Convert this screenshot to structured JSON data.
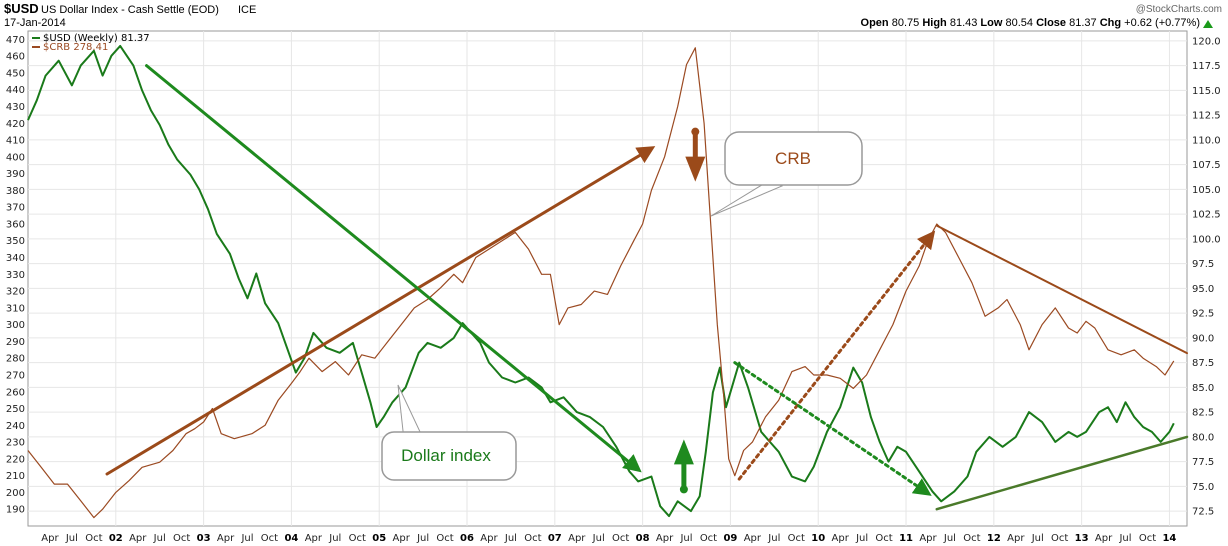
{
  "header": {
    "symbol": "$USD",
    "title": "US Dollar Index - Cash Settle (EOD)",
    "exchange": "ICE",
    "date": "17-Jan-2014",
    "watermark": "@StockCharts.com",
    "quote": {
      "open_label": "Open",
      "open": "80.75",
      "high_label": "High",
      "high": "81.43",
      "low_label": "Low",
      "low": "80.54",
      "close_label": "Close",
      "close": "81.37",
      "chg_label": "Chg",
      "chg": "+0.62 (+0.77%)"
    }
  },
  "legend": {
    "usd_label": "$USD (Weekly) 81.37",
    "crb_label": "$CRB 278.41"
  },
  "colors": {
    "usd": "#1a7a1a",
    "crb": "#9b4a22",
    "trend_brown": "#9b4a1a",
    "trend_green": "#1e8a1e",
    "support_green": "#4a7a2a",
    "callout_border": "#999999"
  },
  "annotations": {
    "crb_callout": "CRB",
    "usd_callout": "Dollar index"
  },
  "chart_data": {
    "type": "line",
    "title": "US Dollar Index - Cash Settle (EOD)",
    "left_axis": {
      "series": "$CRB",
      "range": [
        180,
        475
      ],
      "ticks": [
        190,
        200,
        210,
        220,
        230,
        240,
        250,
        260,
        270,
        280,
        290,
        300,
        310,
        320,
        330,
        340,
        350,
        360,
        370,
        380,
        390,
        400,
        410,
        420,
        430,
        440,
        450,
        460,
        470
      ]
    },
    "right_axis": {
      "series": "$USD",
      "range": [
        71,
        121
      ],
      "ticks": [
        "72.5",
        "75.0",
        "77.5",
        "80.0",
        "82.5",
        "85.0",
        "87.5",
        "90.0",
        "92.5",
        "95.0",
        "97.5",
        "100.0",
        "102.5",
        "105.0",
        "107.5",
        "110.0",
        "112.5",
        "115.0",
        "117.5",
        "120.0"
      ]
    },
    "x_axis": {
      "range": [
        2001.0,
        2014.2
      ],
      "year_labels": [
        {
          "x": 2002,
          "label": "02"
        },
        {
          "x": 2003,
          "label": "03"
        },
        {
          "x": 2004,
          "label": "04"
        },
        {
          "x": 2005,
          "label": "05"
        },
        {
          "x": 2006,
          "label": "06"
        },
        {
          "x": 2007,
          "label": "07"
        },
        {
          "x": 2008,
          "label": "08"
        },
        {
          "x": 2009,
          "label": "09"
        },
        {
          "x": 2010,
          "label": "10"
        },
        {
          "x": 2011,
          "label": "11"
        },
        {
          "x": 2012,
          "label": "12"
        },
        {
          "x": 2013,
          "label": "13"
        },
        {
          "x": 2014,
          "label": "14"
        }
      ],
      "month_labels": [
        "Apr",
        "Jul",
        "Oct"
      ]
    },
    "grid": true,
    "series": [
      {
        "name": "$USD (Weekly)",
        "axis": "right",
        "points": [
          [
            2001.0,
            112.0
          ],
          [
            2001.1,
            114.0
          ],
          [
            2001.2,
            116.5
          ],
          [
            2001.35,
            118.0
          ],
          [
            2001.5,
            115.5
          ],
          [
            2001.6,
            117.5
          ],
          [
            2001.75,
            119.0
          ],
          [
            2001.85,
            116.5
          ],
          [
            2001.95,
            118.5
          ],
          [
            2002.05,
            119.5
          ],
          [
            2002.2,
            117.5
          ],
          [
            2002.3,
            115.0
          ],
          [
            2002.4,
            113.0
          ],
          [
            2002.5,
            111.5
          ],
          [
            2002.6,
            109.5
          ],
          [
            2002.7,
            108.0
          ],
          [
            2002.85,
            106.5
          ],
          [
            2002.95,
            105.0
          ],
          [
            2003.05,
            103.0
          ],
          [
            2003.15,
            100.5
          ],
          [
            2003.3,
            98.5
          ],
          [
            2003.4,
            96.0
          ],
          [
            2003.5,
            94.0
          ],
          [
            2003.6,
            96.5
          ],
          [
            2003.7,
            93.5
          ],
          [
            2003.85,
            91.5
          ],
          [
            2003.95,
            89.0
          ],
          [
            2004.05,
            86.5
          ],
          [
            2004.15,
            88.0
          ],
          [
            2004.25,
            90.5
          ],
          [
            2004.4,
            89.0
          ],
          [
            2004.55,
            88.5
          ],
          [
            2004.7,
            89.5
          ],
          [
            2004.8,
            86.5
          ],
          [
            2004.9,
            83.5
          ],
          [
            2004.97,
            81.0
          ],
          [
            2005.05,
            82.0
          ],
          [
            2005.15,
            83.5
          ],
          [
            2005.3,
            85.0
          ],
          [
            2005.45,
            88.5
          ],
          [
            2005.55,
            89.5
          ],
          [
            2005.7,
            89.0
          ],
          [
            2005.85,
            90.0
          ],
          [
            2005.95,
            91.5
          ],
          [
            2006.05,
            90.5
          ],
          [
            2006.15,
            89.5
          ],
          [
            2006.25,
            87.5
          ],
          [
            2006.4,
            86.0
          ],
          [
            2006.55,
            85.5
          ],
          [
            2006.7,
            86.0
          ],
          [
            2006.85,
            85.0
          ],
          [
            2006.95,
            83.5
          ],
          [
            2007.1,
            84.0
          ],
          [
            2007.25,
            82.5
          ],
          [
            2007.4,
            82.0
          ],
          [
            2007.55,
            81.0
          ],
          [
            2007.7,
            79.0
          ],
          [
            2007.85,
            76.5
          ],
          [
            2007.95,
            75.5
          ],
          [
            2008.1,
            76.0
          ],
          [
            2008.2,
            73.0
          ],
          [
            2008.3,
            72.0
          ],
          [
            2008.4,
            73.5
          ],
          [
            2008.55,
            72.5
          ],
          [
            2008.65,
            74.0
          ],
          [
            2008.72,
            78.5
          ],
          [
            2008.8,
            84.5
          ],
          [
            2008.88,
            87.0
          ],
          [
            2008.95,
            83.0
          ],
          [
            2009.1,
            87.5
          ],
          [
            2009.2,
            85.0
          ],
          [
            2009.35,
            80.5
          ],
          [
            2009.45,
            79.5
          ],
          [
            2009.55,
            78.5
          ],
          [
            2009.7,
            76.0
          ],
          [
            2009.85,
            75.5
          ],
          [
            2009.95,
            77.0
          ],
          [
            2010.1,
            80.5
          ],
          [
            2010.25,
            83.0
          ],
          [
            2010.4,
            87.0
          ],
          [
            2010.5,
            85.5
          ],
          [
            2010.6,
            82.0
          ],
          [
            2010.7,
            79.5
          ],
          [
            2010.8,
            77.5
          ],
          [
            2010.9,
            79.0
          ],
          [
            2011.0,
            78.5
          ],
          [
            2011.15,
            76.5
          ],
          [
            2011.3,
            74.5
          ],
          [
            2011.4,
            73.5
          ],
          [
            2011.55,
            74.5
          ],
          [
            2011.7,
            76.0
          ],
          [
            2011.8,
            78.5
          ],
          [
            2011.95,
            80.0
          ],
          [
            2012.1,
            79.0
          ],
          [
            2012.25,
            80.0
          ],
          [
            2012.4,
            82.5
          ],
          [
            2012.55,
            81.5
          ],
          [
            2012.7,
            79.5
          ],
          [
            2012.85,
            80.5
          ],
          [
            2012.95,
            80.0
          ],
          [
            2013.05,
            80.5
          ],
          [
            2013.2,
            82.5
          ],
          [
            2013.3,
            83.0
          ],
          [
            2013.4,
            81.5
          ],
          [
            2013.5,
            83.5
          ],
          [
            2013.6,
            82.0
          ],
          [
            2013.7,
            81.0
          ],
          [
            2013.8,
            80.5
          ],
          [
            2013.9,
            79.5
          ],
          [
            2014.0,
            80.5
          ],
          [
            2014.05,
            81.37
          ]
        ]
      },
      {
        "name": "$CRB",
        "axis": "left",
        "points": [
          [
            2001.0,
            225
          ],
          [
            2001.15,
            215
          ],
          [
            2001.3,
            205
          ],
          [
            2001.45,
            205
          ],
          [
            2001.6,
            195
          ],
          [
            2001.75,
            185
          ],
          [
            2001.85,
            190
          ],
          [
            2002.0,
            200
          ],
          [
            2002.15,
            207
          ],
          [
            2002.3,
            215
          ],
          [
            2002.5,
            218
          ],
          [
            2002.65,
            225
          ],
          [
            2002.8,
            235
          ],
          [
            2002.9,
            238
          ],
          [
            2003.0,
            242
          ],
          [
            2003.1,
            250
          ],
          [
            2003.2,
            235
          ],
          [
            2003.35,
            232
          ],
          [
            2003.55,
            235
          ],
          [
            2003.7,
            240
          ],
          [
            2003.85,
            255
          ],
          [
            2004.0,
            265
          ],
          [
            2004.1,
            272
          ],
          [
            2004.2,
            280
          ],
          [
            2004.35,
            272
          ],
          [
            2004.5,
            278
          ],
          [
            2004.65,
            270
          ],
          [
            2004.8,
            282
          ],
          [
            2004.95,
            280
          ],
          [
            2005.1,
            290
          ],
          [
            2005.25,
            300
          ],
          [
            2005.4,
            310
          ],
          [
            2005.55,
            315
          ],
          [
            2005.7,
            322
          ],
          [
            2005.85,
            330
          ],
          [
            2005.95,
            325
          ],
          [
            2006.1,
            340
          ],
          [
            2006.25,
            345
          ],
          [
            2006.4,
            350
          ],
          [
            2006.55,
            355
          ],
          [
            2006.7,
            345
          ],
          [
            2006.85,
            330
          ],
          [
            2006.95,
            330
          ],
          [
            2007.05,
            300
          ],
          [
            2007.15,
            310
          ],
          [
            2007.3,
            312
          ],
          [
            2007.45,
            320
          ],
          [
            2007.6,
            318
          ],
          [
            2007.75,
            335
          ],
          [
            2007.9,
            350
          ],
          [
            2008.0,
            360
          ],
          [
            2008.1,
            380
          ],
          [
            2008.25,
            400
          ],
          [
            2008.4,
            430
          ],
          [
            2008.5,
            455
          ],
          [
            2008.6,
            465
          ],
          [
            2008.7,
            420
          ],
          [
            2008.75,
            380
          ],
          [
            2008.8,
            340
          ],
          [
            2008.85,
            300
          ],
          [
            2008.92,
            260
          ],
          [
            2008.98,
            220
          ],
          [
            2009.05,
            210
          ],
          [
            2009.15,
            225
          ],
          [
            2009.25,
            230
          ],
          [
            2009.4,
            245
          ],
          [
            2009.55,
            255
          ],
          [
            2009.7,
            272
          ],
          [
            2009.85,
            275
          ],
          [
            2009.95,
            270
          ],
          [
            2010.1,
            270
          ],
          [
            2010.25,
            268
          ],
          [
            2010.4,
            262
          ],
          [
            2010.55,
            270
          ],
          [
            2010.7,
            285
          ],
          [
            2010.85,
            300
          ],
          [
            2011.0,
            320
          ],
          [
            2011.15,
            335
          ],
          [
            2011.25,
            350
          ],
          [
            2011.35,
            360
          ],
          [
            2011.45,
            355
          ],
          [
            2011.6,
            340
          ],
          [
            2011.75,
            325
          ],
          [
            2011.9,
            305
          ],
          [
            2012.05,
            310
          ],
          [
            2012.15,
            315
          ],
          [
            2012.3,
            300
          ],
          [
            2012.4,
            285
          ],
          [
            2012.55,
            300
          ],
          [
            2012.7,
            310
          ],
          [
            2012.85,
            298
          ],
          [
            2012.95,
            295
          ],
          [
            2013.05,
            302
          ],
          [
            2013.15,
            298
          ],
          [
            2013.3,
            285
          ],
          [
            2013.45,
            282
          ],
          [
            2013.6,
            285
          ],
          [
            2013.7,
            280
          ],
          [
            2013.85,
            275
          ],
          [
            2013.95,
            270
          ],
          [
            2014.05,
            278.41
          ]
        ]
      }
    ],
    "trendlines": [
      {
        "name": "crb-uptrend",
        "axis": "left",
        "style": "solid",
        "from": [
          2001.9,
          211
        ],
        "to": [
          2008.1,
          405
        ]
      },
      {
        "name": "usd-downtrend",
        "axis": "right",
        "style": "solid",
        "from": [
          2002.35,
          117.5
        ],
        "to": [
          2007.95,
          76.7
        ]
      },
      {
        "name": "crb-recovery",
        "axis": "left",
        "style": "dotted",
        "from": [
          2009.1,
          208
        ],
        "to": [
          2011.3,
          354
        ]
      },
      {
        "name": "usd-decline",
        "axis": "right",
        "style": "dotted",
        "from": [
          2009.05,
          87.5
        ],
        "to": [
          2011.25,
          74.3
        ]
      },
      {
        "name": "crb-downtrend",
        "axis": "left",
        "style": "solid",
        "from": [
          2011.35,
          359
        ],
        "to": [
          2014.2,
          283
        ]
      },
      {
        "name": "usd-support",
        "axis": "right",
        "style": "solid",
        "from": [
          2011.35,
          72.7
        ],
        "to": [
          2014.2,
          80.0
        ]
      }
    ],
    "markers": [
      {
        "name": "crb-down-arrow",
        "axis": "left",
        "x": 2008.6,
        "y": 415,
        "direction": "down"
      },
      {
        "name": "usd-up-arrow",
        "axis": "right",
        "x": 2008.47,
        "y": 74.7,
        "direction": "up"
      }
    ]
  }
}
